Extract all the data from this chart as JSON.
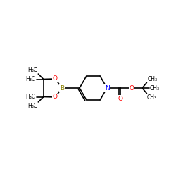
{
  "bg_color": "#ffffff",
  "bond_color": "#000000",
  "bond_width": 1.2,
  "atom_colors": {
    "B": "#8B8000",
    "O": "#FF0000",
    "N": "#0000FF",
    "C": "#000000"
  },
  "font_size_atom": 6.5,
  "font_size_label": 5.5,
  "xlim": [
    0,
    10
  ],
  "ylim": [
    2.5,
    7.5
  ],
  "figsize": [
    2.5,
    2.5
  ],
  "dpi": 100
}
